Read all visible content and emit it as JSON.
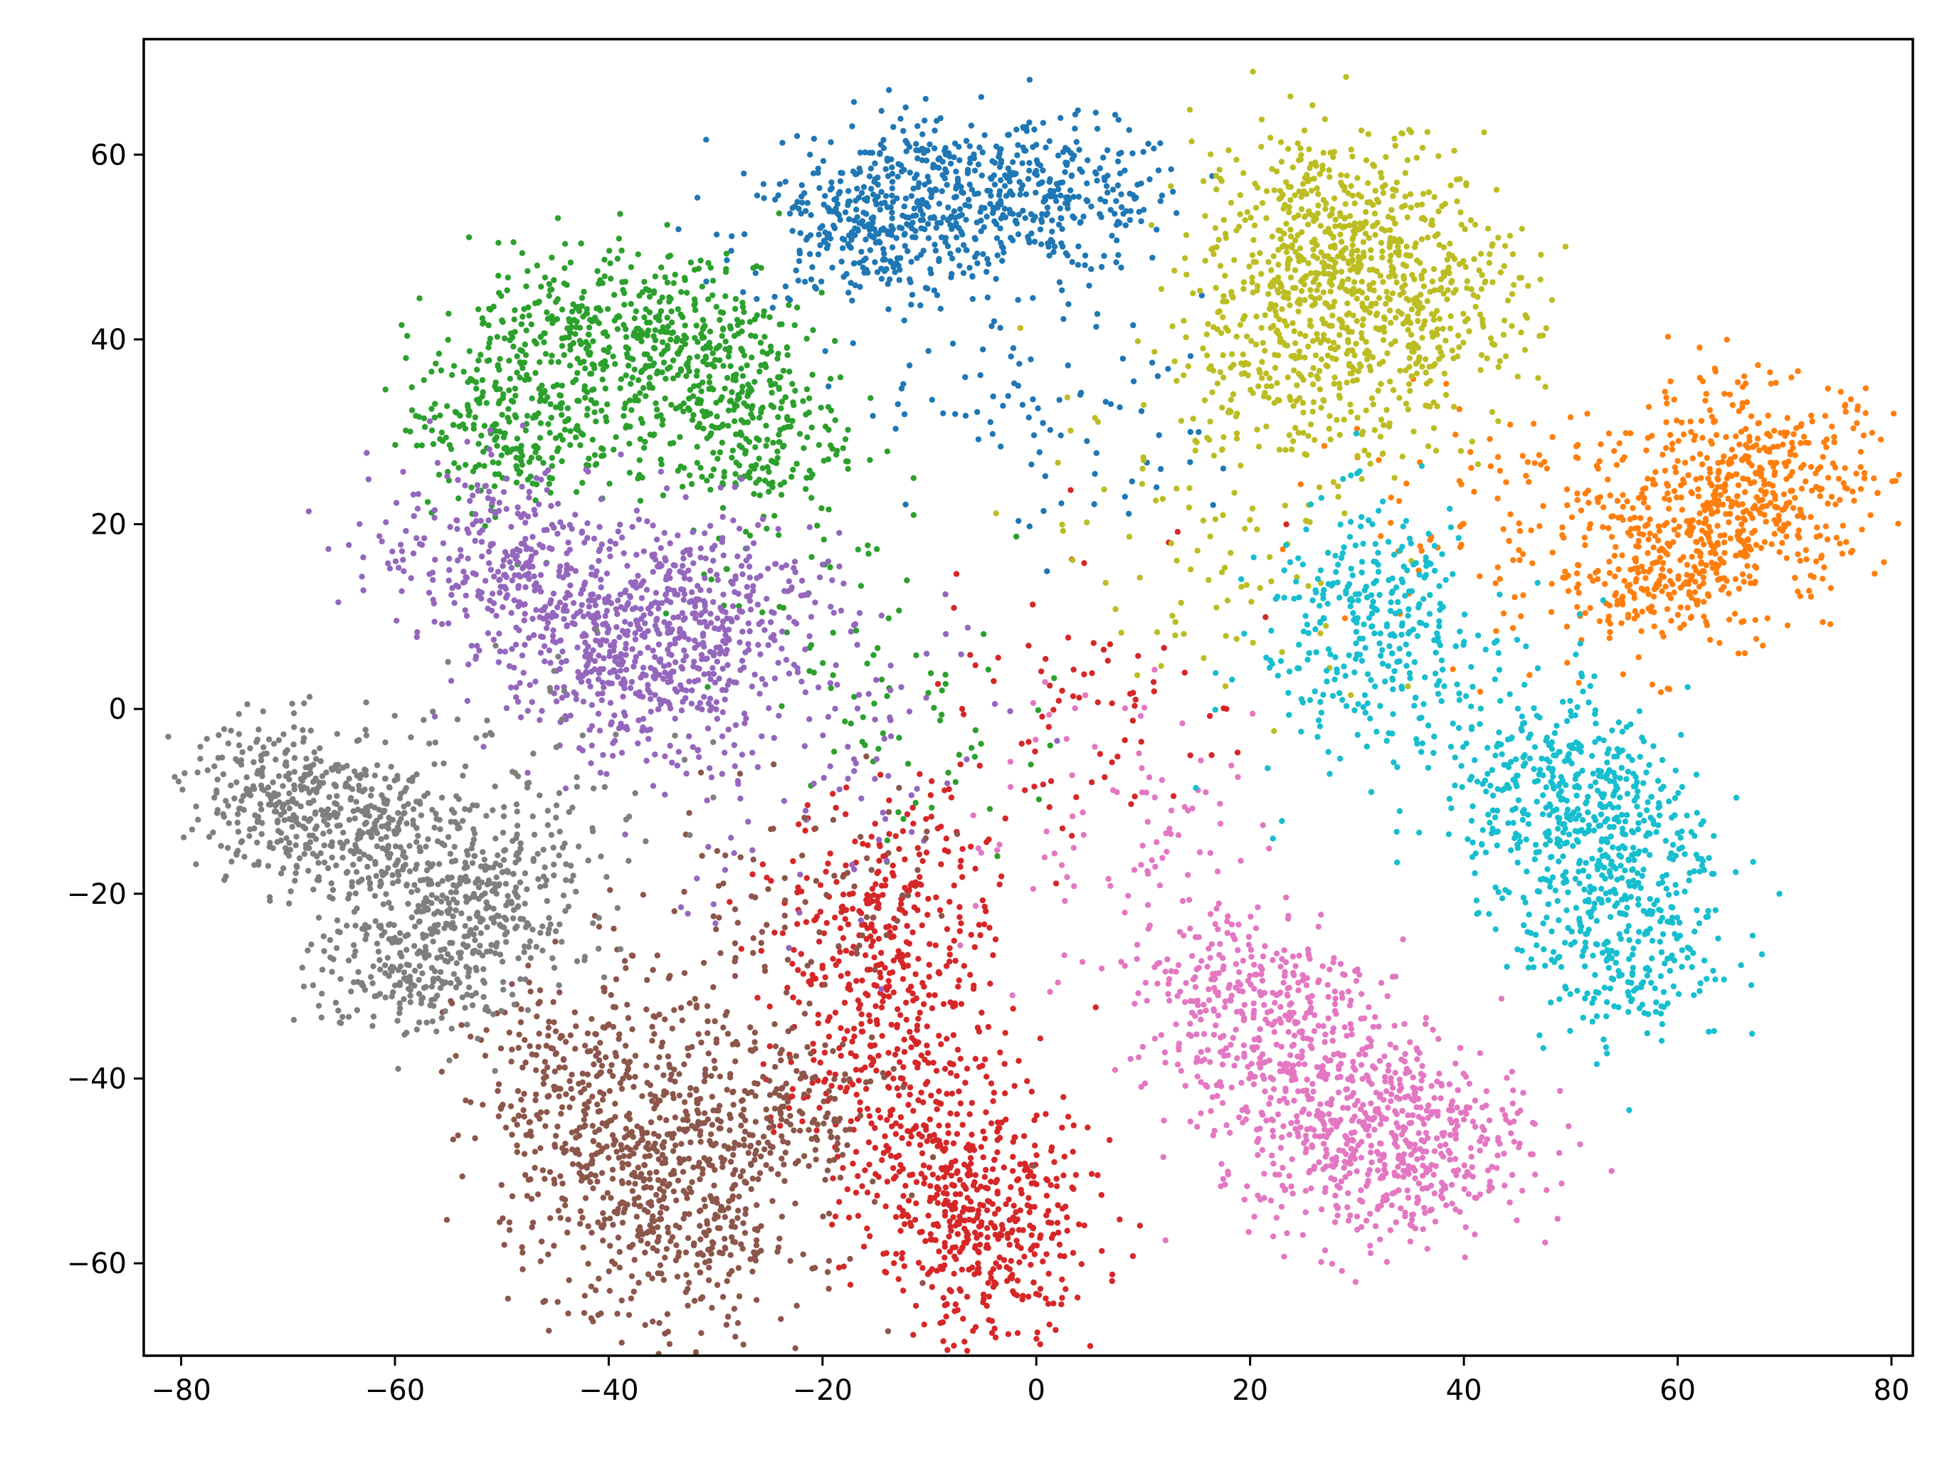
{
  "chart_data": {
    "type": "scatter",
    "title": "",
    "xlabel": "",
    "ylabel": "",
    "xlim": [
      -83.5,
      82
    ],
    "ylim": [
      -70,
      72.5
    ],
    "x_ticks": [
      -80,
      -60,
      -40,
      -20,
      0,
      20,
      40,
      60,
      80
    ],
    "y_ticks": [
      -60,
      -40,
      -20,
      0,
      20,
      40,
      60
    ],
    "x_tick_labels": [
      "−80",
      "−60",
      "−40",
      "−20",
      "0",
      "20",
      "40",
      "60",
      "80"
    ],
    "y_tick_labels": [
      "−60",
      "−40",
      "−20",
      "0",
      "20",
      "40",
      "60"
    ],
    "grid": false,
    "legend": "none",
    "point_count_note": "",
    "clusters": [
      {
        "color": "#1f77b4",
        "centers": [
          [
            -10,
            57
          ],
          [
            2,
            55
          ],
          [
            -16,
            51
          ]
        ],
        "spread": [
          6,
          4
        ],
        "tail": [
          [
            -5,
            36
          ],
          [
            5,
            30
          ]
        ]
      },
      {
        "color": "#ff7f0e",
        "centers": [
          [
            64,
            21
          ],
          [
            58,
            15
          ],
          [
            68,
            26
          ]
        ],
        "spread": [
          6,
          5
        ],
        "tail": [
          [
            45,
            20
          ],
          [
            40,
            26
          ]
        ]
      },
      {
        "color": "#2ca02c",
        "centers": [
          [
            -32,
            40
          ],
          [
            -28,
            30
          ],
          [
            -49,
            31
          ],
          [
            -43,
            40
          ]
        ],
        "spread": [
          5,
          5
        ],
        "tail": [
          [
            -20,
            15
          ],
          [
            -10,
            -8
          ]
        ]
      },
      {
        "color": "#d62728",
        "centers": [
          [
            -7,
            -52
          ],
          [
            -4,
            -58
          ],
          [
            -14,
            -38
          ],
          [
            -14,
            -22
          ]
        ],
        "spread": [
          5,
          6
        ],
        "tail": [
          [
            10,
            8
          ],
          [
            -5,
            -10
          ]
        ]
      },
      {
        "color": "#9467bd",
        "centers": [
          [
            -42,
            8
          ],
          [
            -50,
            17
          ],
          [
            -35,
            3
          ],
          [
            -30,
            12
          ]
        ],
        "spread": [
          6,
          5
        ],
        "tail": [
          [
            -15,
            5
          ],
          [
            -25,
            -15
          ]
        ]
      },
      {
        "color": "#8c564b",
        "centers": [
          [
            -38,
            -50
          ],
          [
            -33,
            -57
          ],
          [
            -26,
            -44
          ],
          [
            -42,
            -40
          ]
        ],
        "spread": [
          6,
          6
        ],
        "tail": [
          [
            -28,
            -25
          ],
          [
            -20,
            -15
          ]
        ]
      },
      {
        "color": "#e377c2",
        "centers": [
          [
            25,
            -40
          ],
          [
            32,
            -50
          ],
          [
            20,
            -30
          ],
          [
            34,
            -45
          ]
        ],
        "spread": [
          6,
          5
        ],
        "tail": [
          [
            10,
            -20
          ],
          [
            5,
            -5
          ]
        ]
      },
      {
        "color": "#7f7f7f",
        "centers": [
          [
            -70,
            -9
          ],
          [
            -63,
            -13
          ],
          [
            -58,
            -28
          ],
          [
            -52,
            -20
          ]
        ],
        "spread": [
          5,
          4
        ],
        "tail": [
          [
            -44,
            -15
          ],
          [
            -50,
            -5
          ]
        ]
      },
      {
        "color": "#bcbd22",
        "centers": [
          [
            30,
            49
          ],
          [
            24,
            38
          ],
          [
            35,
            42
          ],
          [
            27,
            52
          ]
        ],
        "spread": [
          6,
          6
        ],
        "tail": [
          [
            12,
            25
          ],
          [
            20,
            10
          ]
        ]
      },
      {
        "color": "#17becf",
        "centers": [
          [
            53,
            -14
          ],
          [
            55,
            -25
          ],
          [
            48,
            -8
          ],
          [
            32,
            10
          ]
        ],
        "spread": [
          5,
          6
        ],
        "tail": [
          [
            25,
            5
          ],
          [
            40,
            0
          ]
        ]
      }
    ]
  }
}
